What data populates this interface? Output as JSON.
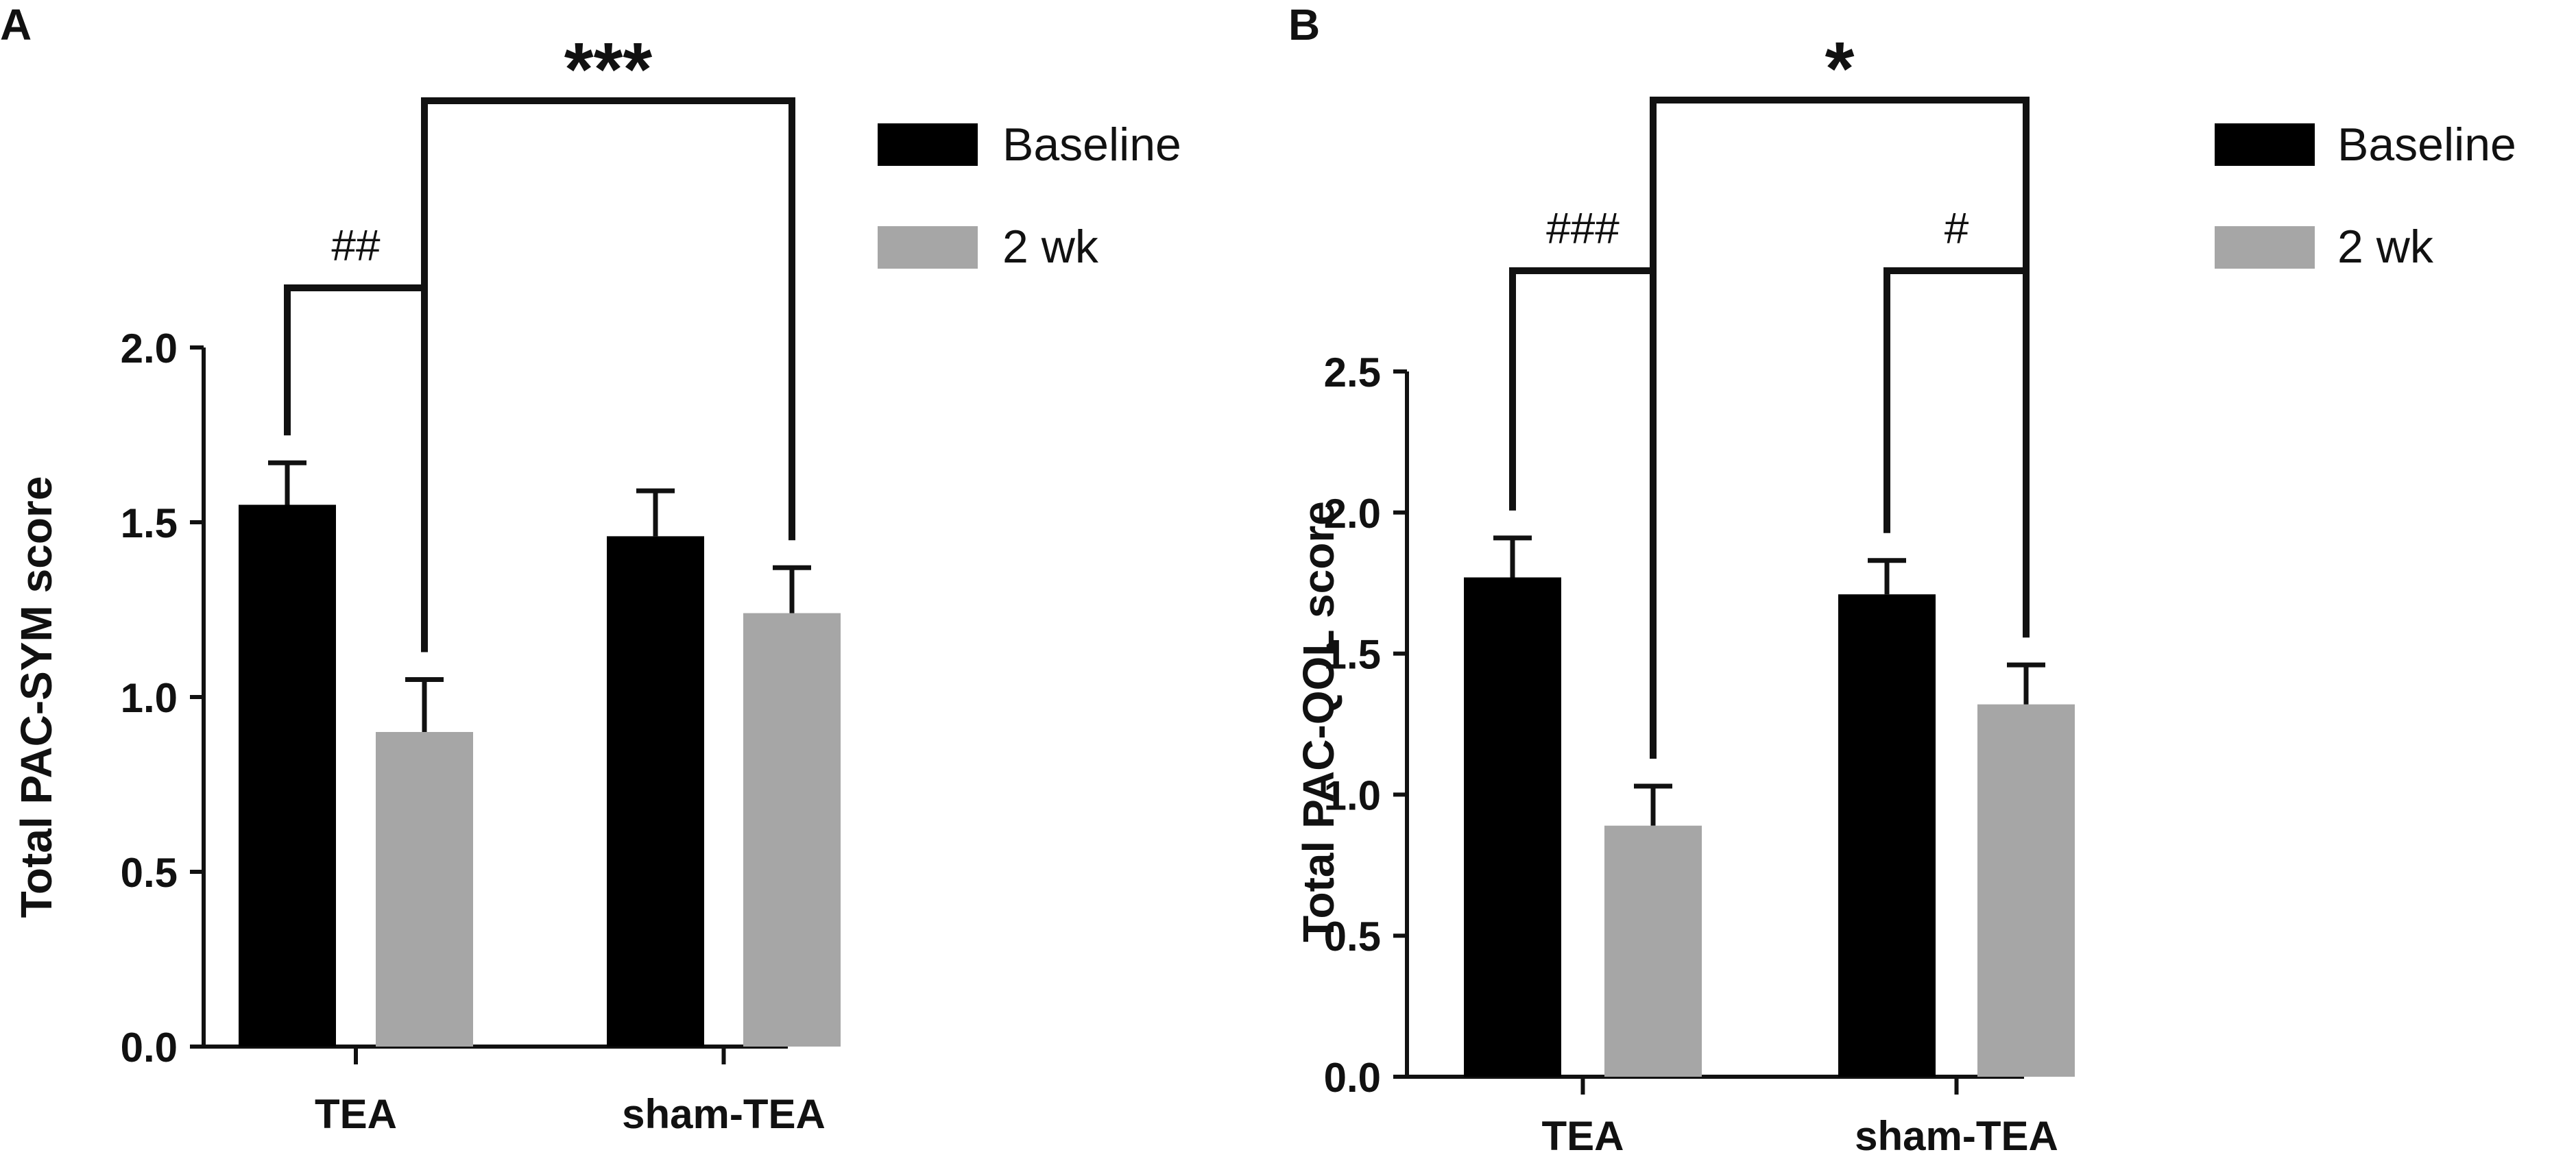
{
  "colors": {
    "baseline": "#000000",
    "week2": "#a6a6a6",
    "axis": "#111111"
  },
  "legend": {
    "baseline_label": "Baseline",
    "week2_label": "2 wk"
  },
  "chart_data": [
    {
      "panel_label": "A",
      "type": "bar",
      "title": "",
      "xlabel": "",
      "ylabel": "Total PAC-SYM  score",
      "categories": [
        "TEA",
        "sham-TEA"
      ],
      "series": [
        {
          "name": "Baseline",
          "values": [
            1.55,
            1.46
          ],
          "errors": [
            0.12,
            0.13
          ]
        },
        {
          "name": "2 wk",
          "values": [
            0.9,
            1.24
          ],
          "errors": [
            0.15,
            0.13
          ]
        }
      ],
      "ylim": [
        0,
        2.0
      ],
      "yticks": [
        "0.0",
        "0.5",
        "1.0",
        "1.5",
        "2.0"
      ],
      "yticks_values": [
        0,
        0.5,
        1.0,
        1.5,
        2.0
      ],
      "legend_position": "top-right",
      "grid": false,
      "annotations": [
        {
          "text": "##",
          "from": [
            0,
            0
          ],
          "to": [
            0,
            1
          ],
          "level": 0
        },
        {
          "text": "***",
          "from": [
            0,
            1
          ],
          "to": [
            1,
            1
          ],
          "level": 1
        }
      ]
    },
    {
      "panel_label": "B",
      "type": "bar",
      "title": "",
      "xlabel": "",
      "ylabel": "Total PAC-QOL score",
      "categories": [
        "TEA",
        "sham-TEA"
      ],
      "series": [
        {
          "name": "Baseline",
          "values": [
            1.77,
            1.71
          ],
          "errors": [
            0.14,
            0.12
          ]
        },
        {
          "name": "2 wk",
          "values": [
            0.89,
            1.32
          ],
          "errors": [
            0.14,
            0.14
          ]
        }
      ],
      "ylim": [
        0,
        2.5
      ],
      "yticks": [
        "0.0",
        "0.5",
        "1.0",
        "1.5",
        "2.0",
        "2.5"
      ],
      "yticks_values": [
        0,
        0.5,
        1.0,
        1.5,
        2.0,
        2.5
      ],
      "legend_position": "top-right",
      "grid": false,
      "annotations": [
        {
          "text": "###",
          "from": [
            0,
            0
          ],
          "to": [
            0,
            1
          ],
          "level": 0
        },
        {
          "text": "#",
          "from": [
            1,
            0
          ],
          "to": [
            1,
            1
          ],
          "level": 0
        },
        {
          "text": "*",
          "from": [
            0,
            1
          ],
          "to": [
            1,
            1
          ],
          "level": 1
        }
      ]
    }
  ]
}
